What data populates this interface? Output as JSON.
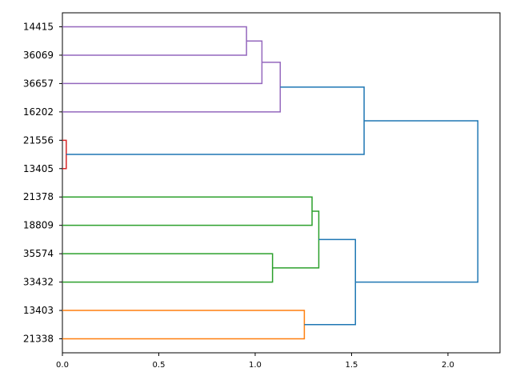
{
  "chart_data": {
    "type": "dendrogram",
    "orientation": "left",
    "leaves": [
      "14415",
      "36069",
      "36657",
      "16202",
      "21556",
      "13405",
      "21378",
      "18809",
      "35574",
      "33432",
      "13403",
      "21338"
    ],
    "xlim": [
      0,
      2.27
    ],
    "xticks": [
      0.0,
      0.5,
      1.0,
      1.5,
      2.0
    ],
    "xtick_labels": [
      "0.0",
      "0.5",
      "1.0",
      "1.5",
      "2.0"
    ],
    "colors": {
      "purple": "#9467bd",
      "red": "#d62728",
      "green": "#2ca02c",
      "orange": "#ff7f0e",
      "blue": "#1f77b4"
    },
    "merges": [
      {
        "id": "m_purple_a",
        "left": 0,
        "right": 1,
        "height": 0.955,
        "color": "purple"
      },
      {
        "id": "m_purple_b",
        "left": "m_purple_a",
        "right": 2,
        "height": 1.035,
        "color": "purple"
      },
      {
        "id": "m_purple_c",
        "left": "m_purple_b",
        "right": 3,
        "height": 1.13,
        "color": "purple"
      },
      {
        "id": "m_red",
        "left": 4,
        "right": 5,
        "height": 0.02,
        "color": "red"
      },
      {
        "id": "m_top_a",
        "left": "m_purple_c",
        "right": "m_red",
        "height": 1.565,
        "color": "blue"
      },
      {
        "id": "m_green_a",
        "left": 6,
        "right": 7,
        "height": 1.295,
        "color": "green"
      },
      {
        "id": "m_green_b",
        "left": 8,
        "right": 9,
        "height": 1.09,
        "color": "green"
      },
      {
        "id": "m_green_c",
        "left": "m_green_a",
        "right": "m_green_b",
        "height": 1.33,
        "color": "green"
      },
      {
        "id": "m_orange",
        "left": 10,
        "right": 11,
        "height": 1.255,
        "color": "orange"
      },
      {
        "id": "m_bottom",
        "left": "m_green_c",
        "right": "m_orange",
        "height": 1.52,
        "color": "blue"
      },
      {
        "id": "m_root",
        "left": "m_top_a",
        "right": "m_bottom",
        "height": 2.155,
        "color": "blue"
      }
    ]
  }
}
